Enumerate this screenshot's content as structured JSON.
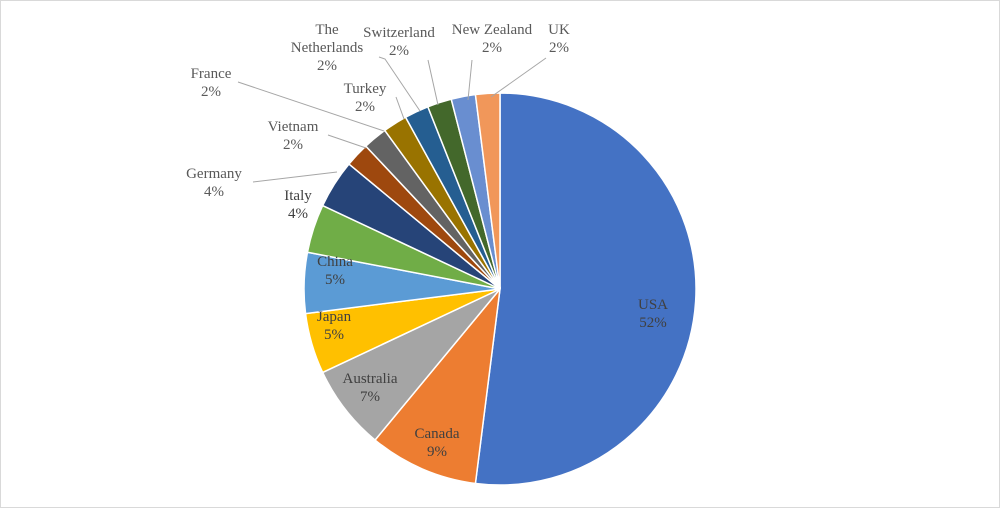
{
  "chart_data": {
    "type": "pie",
    "title": "",
    "legend": "none",
    "start_angle_deg": 0,
    "direction": "clockwise",
    "slices": [
      {
        "name": "USA",
        "value": 52,
        "label": "52%",
        "color": "#4472C4"
      },
      {
        "name": "Canada",
        "value": 9,
        "label": "9%",
        "color": "#ED7D31"
      },
      {
        "name": "Australia",
        "value": 7,
        "label": "7%",
        "color": "#A5A5A5"
      },
      {
        "name": "Japan",
        "value": 5,
        "label": "5%",
        "color": "#FFC000"
      },
      {
        "name": "China",
        "value": 5,
        "label": "5%",
        "color": "#5B9BD5"
      },
      {
        "name": "Italy",
        "value": 4,
        "label": "4%",
        "color": "#70AD47"
      },
      {
        "name": "Germany",
        "value": 4,
        "label": "4%",
        "color": "#264478"
      },
      {
        "name": "Vietnam",
        "value": 2,
        "label": "2%",
        "color": "#9E480E"
      },
      {
        "name": "France",
        "value": 2,
        "label": "2%",
        "color": "#636363"
      },
      {
        "name": "Turkey",
        "value": 2,
        "label": "2%",
        "color": "#997300"
      },
      {
        "name": "The Netherlands",
        "value": 2,
        "label": "2%",
        "color": "#255E91"
      },
      {
        "name": "Switzerland",
        "value": 2,
        "label": "2%",
        "color": "#43682B"
      },
      {
        "name": "New Zealand",
        "value": 2,
        "label": "2%",
        "color": "#698ED0"
      },
      {
        "name": "UK",
        "value": 2,
        "label": "2%",
        "color": "#F1975A"
      }
    ]
  }
}
